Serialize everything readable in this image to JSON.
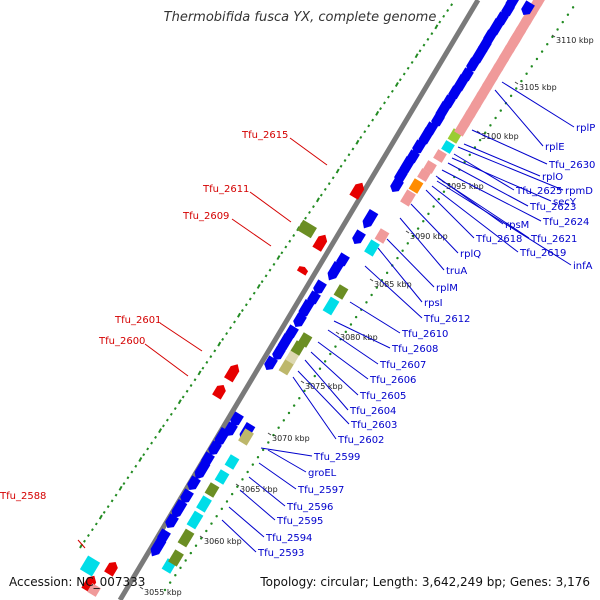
{
  "title": "Thermobifida fusca YX, complete genome",
  "accession": "Accession: NC_007333",
  "topology": "Topology: circular; Length: 3,642,249 bp; Genes: 3,176",
  "colors": {
    "backbone": "#808080",
    "forward_cds": "#e60000",
    "reverse_cds": "#0000ee",
    "label_left": "#d40000",
    "label_right": "#0000cc",
    "rrna_pink": "#f09a9a",
    "olive": "#6b8e23",
    "khaki": "#bdb76b",
    "cyan": "#00dde8",
    "orange": "#ff8c00",
    "lime": "#9acd32",
    "gc_dots": "#228b22"
  },
  "kbp_ticks": [
    "3055 kbp",
    "3060 kbp",
    "3065 kbp",
    "3070 kbp",
    "3075 kbp",
    "3080 kbp",
    "3085 kbp",
    "3090 kbp",
    "3095 kbp",
    "3100 kbp",
    "3105 kbp",
    "3110 kbp"
  ],
  "left_labels": [
    "Tfu_2588",
    "Tfu_2600",
    "Tfu_2601",
    "Tfu_2609",
    "Tfu_2611",
    "Tfu_2615"
  ],
  "right_labels": [
    "Tfu_2593",
    "Tfu_2594",
    "Tfu_2595",
    "Tfu_2596",
    "Tfu_2597",
    "groEL",
    "Tfu_2599",
    "Tfu_2602",
    "Tfu_2603",
    "Tfu_2604",
    "Tfu_2605",
    "Tfu_2606",
    "Tfu_2607",
    "Tfu_2608",
    "Tfu_2610",
    "Tfu_2612",
    "rpsI",
    "rplM",
    "truA",
    "rplQ",
    "Tfu_2618",
    "Tfu_2619",
    "infA",
    "Tfu_2621",
    "rpsM",
    "Tfu_2624",
    "Tfu_2623",
    "secY",
    "Tfu_2625",
    "rpmD",
    "rplO",
    "Tfu_2630",
    "rplE",
    "rplP"
  ]
}
